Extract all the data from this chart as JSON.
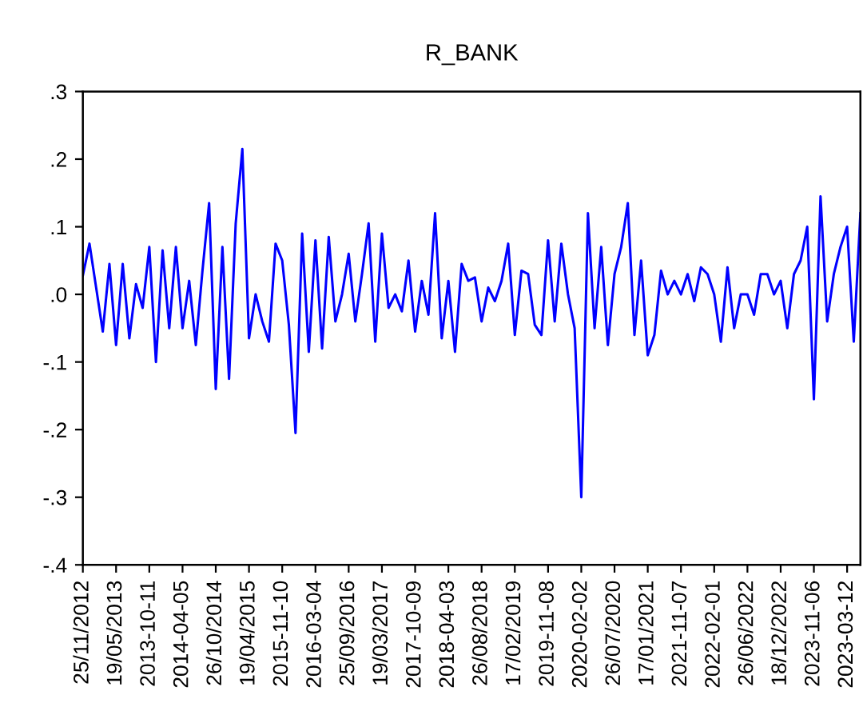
{
  "chart_data": {
    "type": "line",
    "title": "R_BANK",
    "categories": [
      "25/11/2012",
      null,
      null,
      null,
      null,
      "19/05/2013",
      null,
      null,
      null,
      null,
      "2013-10-11",
      null,
      null,
      null,
      null,
      "2014-04-05",
      null,
      null,
      null,
      null,
      "26/10/2014",
      null,
      null,
      null,
      null,
      "19/04/2015",
      null,
      null,
      null,
      null,
      "2015-11-10",
      null,
      null,
      null,
      null,
      "2016-03-04",
      null,
      null,
      null,
      null,
      "25/09/2016",
      null,
      null,
      null,
      null,
      "19/03/2017",
      null,
      null,
      null,
      null,
      "2017-10-09",
      null,
      null,
      null,
      null,
      "2018-04-03",
      null,
      null,
      null,
      null,
      "26/08/2018",
      null,
      null,
      null,
      null,
      "17/02/2019",
      null,
      null,
      null,
      null,
      "2019-11-08",
      null,
      null,
      null,
      null,
      "2020-02-02",
      null,
      null,
      null,
      null,
      "26/07/2020",
      null,
      null,
      null,
      null,
      "17/01/2021",
      null,
      null,
      null,
      null,
      "2021-11-07",
      null,
      null,
      null,
      null,
      "2022-02-01",
      null,
      null,
      null,
      null,
      "26/06/2022",
      null,
      null,
      null,
      null,
      "18/12/2022",
      null,
      null,
      null,
      null,
      "2023-11-06",
      null,
      null,
      null,
      null,
      "2023-03-12",
      null,
      null
    ],
    "series": [
      {
        "color": "#0000ff",
        "values": [
          0.028,
          0.075,
          0.01,
          -0.055,
          0.045,
          -0.075,
          0.045,
          -0.065,
          0.015,
          -0.02,
          0.07,
          -0.1,
          0.065,
          -0.05,
          0.07,
          -0.05,
          0.02,
          -0.075,
          0.035,
          0.135,
          -0.14,
          0.07,
          -0.125,
          0.105,
          0.215,
          -0.065,
          0.0,
          -0.04,
          -0.07,
          0.075,
          0.05,
          -0.045,
          -0.205,
          0.09,
          -0.085,
          0.08,
          -0.08,
          0.085,
          -0.04,
          0.0,
          0.06,
          -0.04,
          0.03,
          0.105,
          -0.07,
          0.09,
          -0.02,
          0.0,
          -0.025,
          0.05,
          -0.055,
          0.02,
          -0.03,
          0.12,
          -0.065,
          0.02,
          -0.085,
          0.045,
          0.02,
          0.025,
          -0.04,
          0.01,
          -0.01,
          0.02,
          0.075,
          -0.06,
          0.035,
          0.03,
          -0.045,
          -0.06,
          0.08,
          -0.04,
          0.075,
          0.0,
          -0.05,
          -0.3,
          0.12,
          -0.05,
          0.07,
          -0.075,
          0.03,
          0.07,
          0.135,
          -0.06,
          0.05,
          -0.09,
          -0.06,
          0.035,
          0.0,
          0.02,
          0.0,
          0.03,
          -0.01,
          0.04,
          0.03,
          0.0,
          -0.07,
          0.04,
          -0.05,
          0.0,
          0.0,
          -0.03,
          0.03,
          0.03,
          0.0,
          0.02,
          -0.05,
          0.03,
          0.05,
          0.1,
          -0.155,
          0.145,
          -0.04,
          0.03,
          0.07,
          0.1,
          -0.07,
          0.12
        ]
      }
    ],
    "ylim": [
      -0.4,
      0.3
    ],
    "yticks": [
      {
        "value": -0.4,
        "label": "-.4"
      },
      {
        "value": -0.3,
        "label": "-.3"
      },
      {
        "value": -0.2,
        "label": "-.2"
      },
      {
        "value": -0.1,
        "label": "-.1"
      },
      {
        "value": 0.0,
        "label": ".0"
      },
      {
        "value": 0.1,
        "label": ".1"
      },
      {
        "value": 0.2,
        "label": ".2"
      },
      {
        "value": 0.3,
        "label": ".3"
      }
    ],
    "grid": false,
    "legend": false,
    "marker": "none",
    "line_style": "solid"
  }
}
